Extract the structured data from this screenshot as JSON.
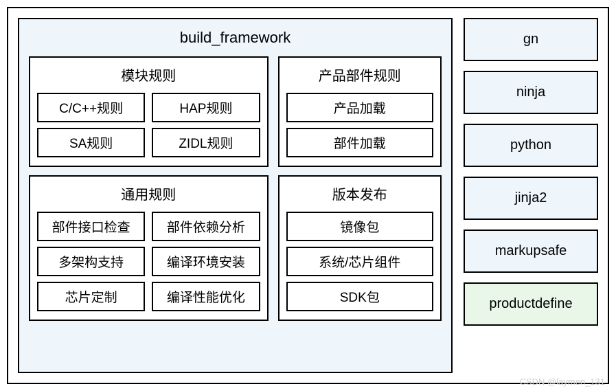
{
  "colors": {
    "border": "#000000",
    "bg_blue": "#eef6fc",
    "bg_green": "#e9f7e9",
    "bg_white": "#ffffff",
    "watermark": "#d0d0d0"
  },
  "typography": {
    "title_fontsize": 22,
    "panel_title_fontsize": 20,
    "cell_fontsize": 19,
    "side_fontsize": 20
  },
  "diagram": {
    "type": "infographic",
    "main": {
      "title": "build_framework",
      "panels": [
        {
          "id": "module_rules",
          "title": "模块规则",
          "columns": 2,
          "cells": [
            "C/C++规则",
            "HAP规则",
            "SA规则",
            "ZIDL规则"
          ]
        },
        {
          "id": "product_component_rules",
          "title": "产品部件规则",
          "columns": 1,
          "cells": [
            "产品加载",
            "部件加载"
          ]
        },
        {
          "id": "general_rules",
          "title": "通用规则",
          "columns": 2,
          "cells": [
            "部件接口检查",
            "部件依赖分析",
            "多架构支持",
            "编译环境安装",
            "芯片定制",
            "编译性能优化"
          ]
        },
        {
          "id": "release",
          "title": "版本发布",
          "columns": 1,
          "cells": [
            "镜像包",
            "系统/芯片组件",
            "SDK包"
          ]
        }
      ]
    },
    "side": [
      {
        "label": "gn",
        "bg": "blue"
      },
      {
        "label": "ninja",
        "bg": "blue"
      },
      {
        "label": "python",
        "bg": "blue"
      },
      {
        "label": "jinja2",
        "bg": "blue"
      },
      {
        "label": "markupsafe",
        "bg": "blue"
      },
      {
        "label": "productdefine",
        "bg": "green"
      }
    ]
  },
  "watermark": "CSDN @laymen_131"
}
